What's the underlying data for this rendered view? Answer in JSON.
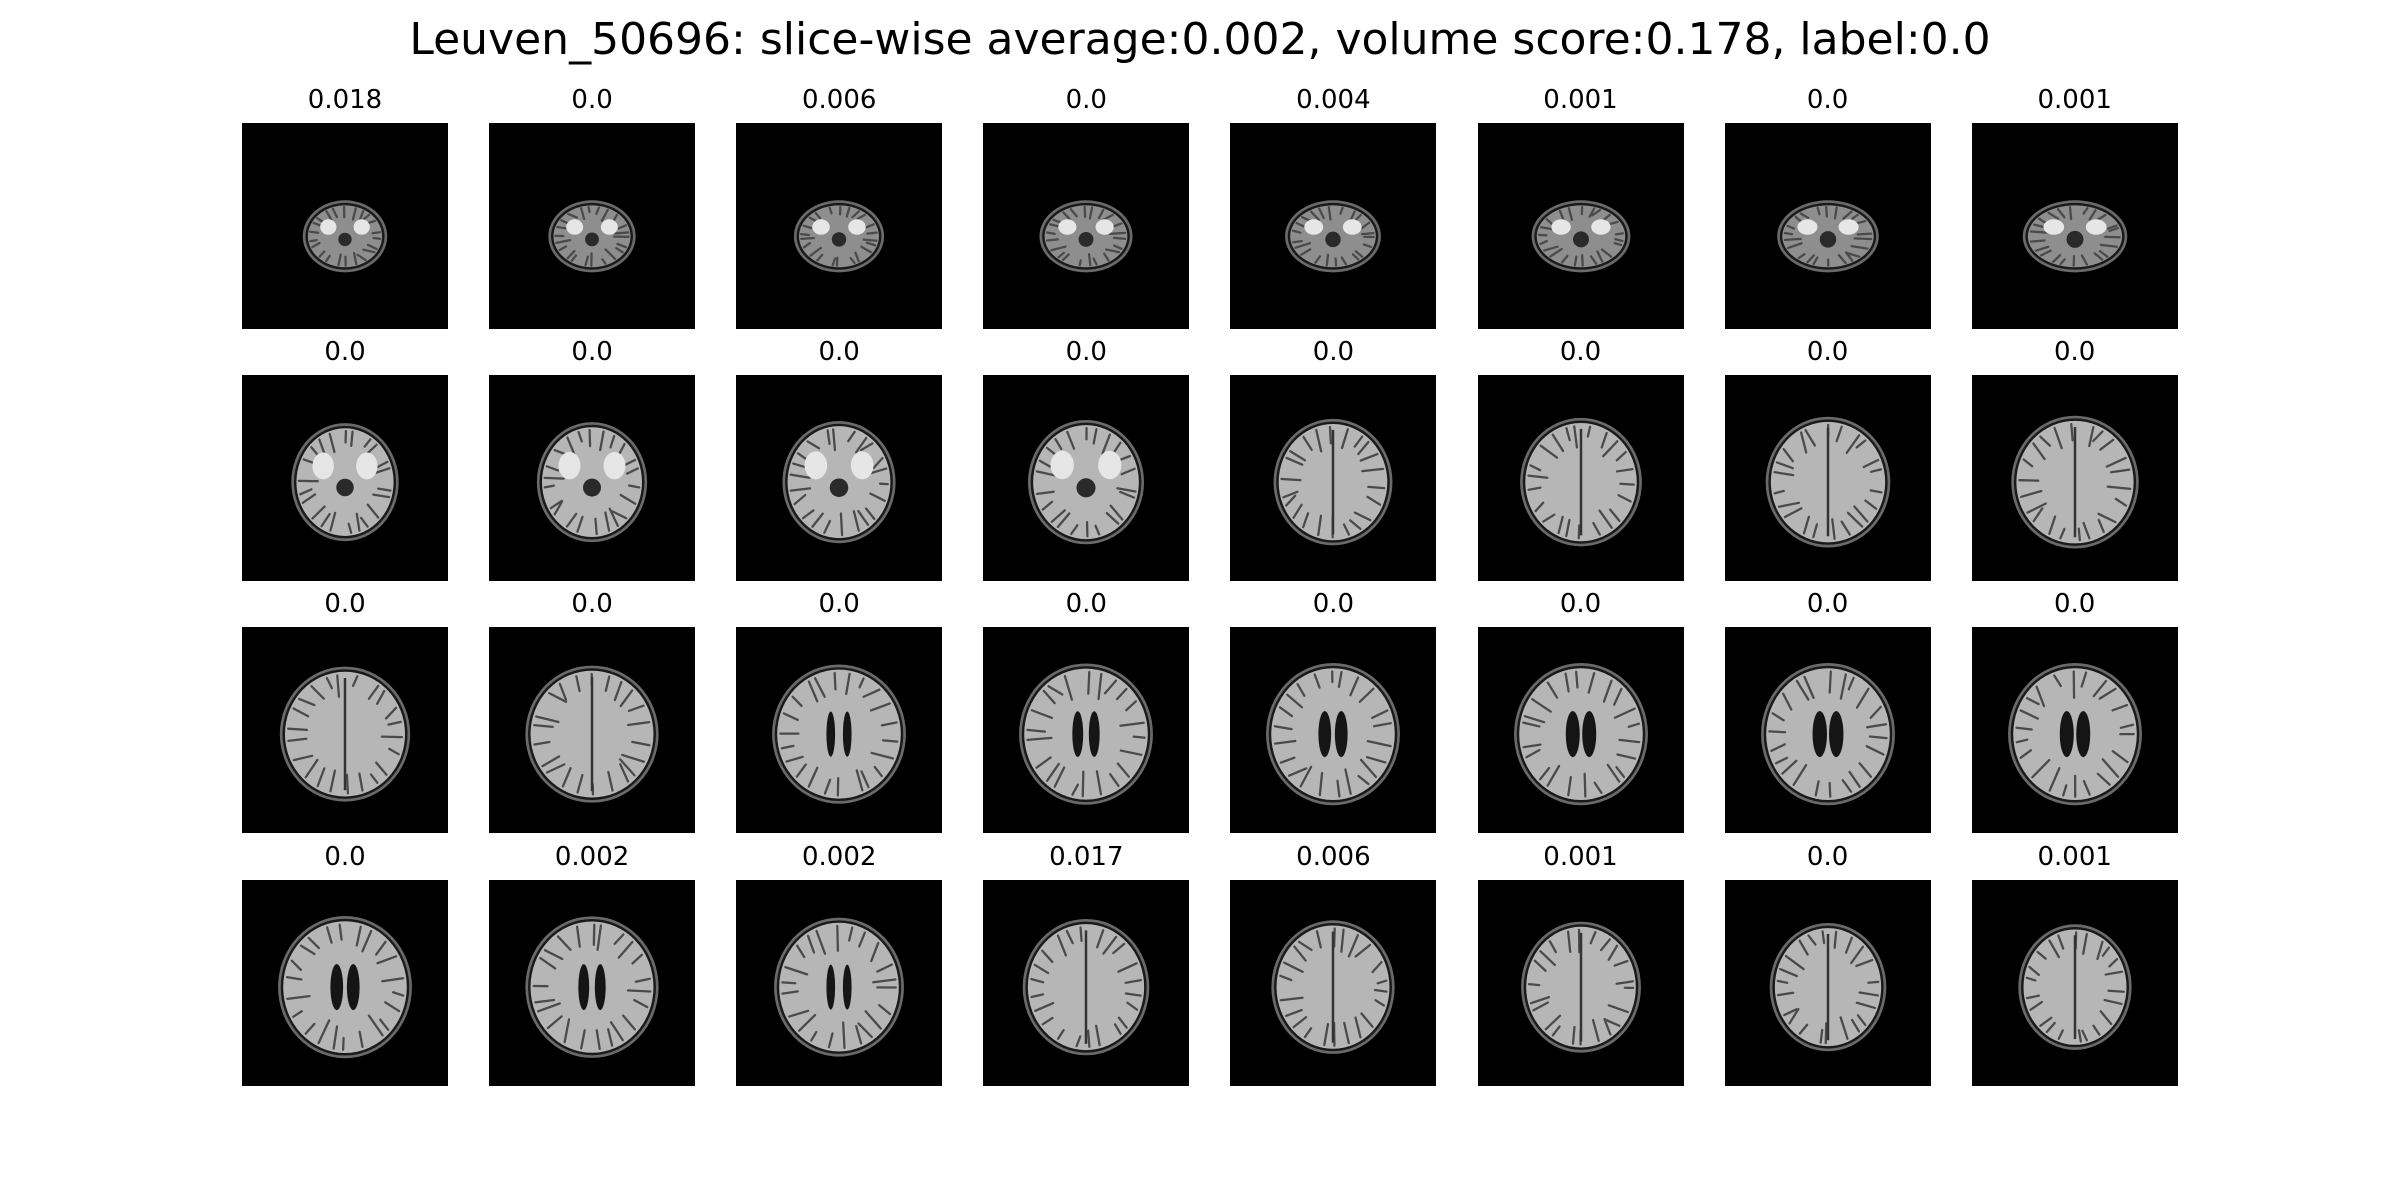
{
  "title": "Leuven_50696: slice-wise average:0.002, volume score:0.178, label:0.0",
  "slice_scores": [
    "0.018",
    "0.0",
    "0.006",
    "0.0",
    "0.004",
    "0.001",
    "0.0",
    "0.001",
    "0.0",
    "0.0",
    "0.0",
    "0.0",
    "0.0",
    "0.0",
    "0.0",
    "0.0",
    "0.0",
    "0.0",
    "0.0",
    "0.0",
    "0.0",
    "0.0",
    "0.0",
    "0.0",
    "0.0",
    "0.002",
    "0.002",
    "0.017",
    "0.006",
    "0.001",
    "0.0",
    "0.001"
  ]
}
